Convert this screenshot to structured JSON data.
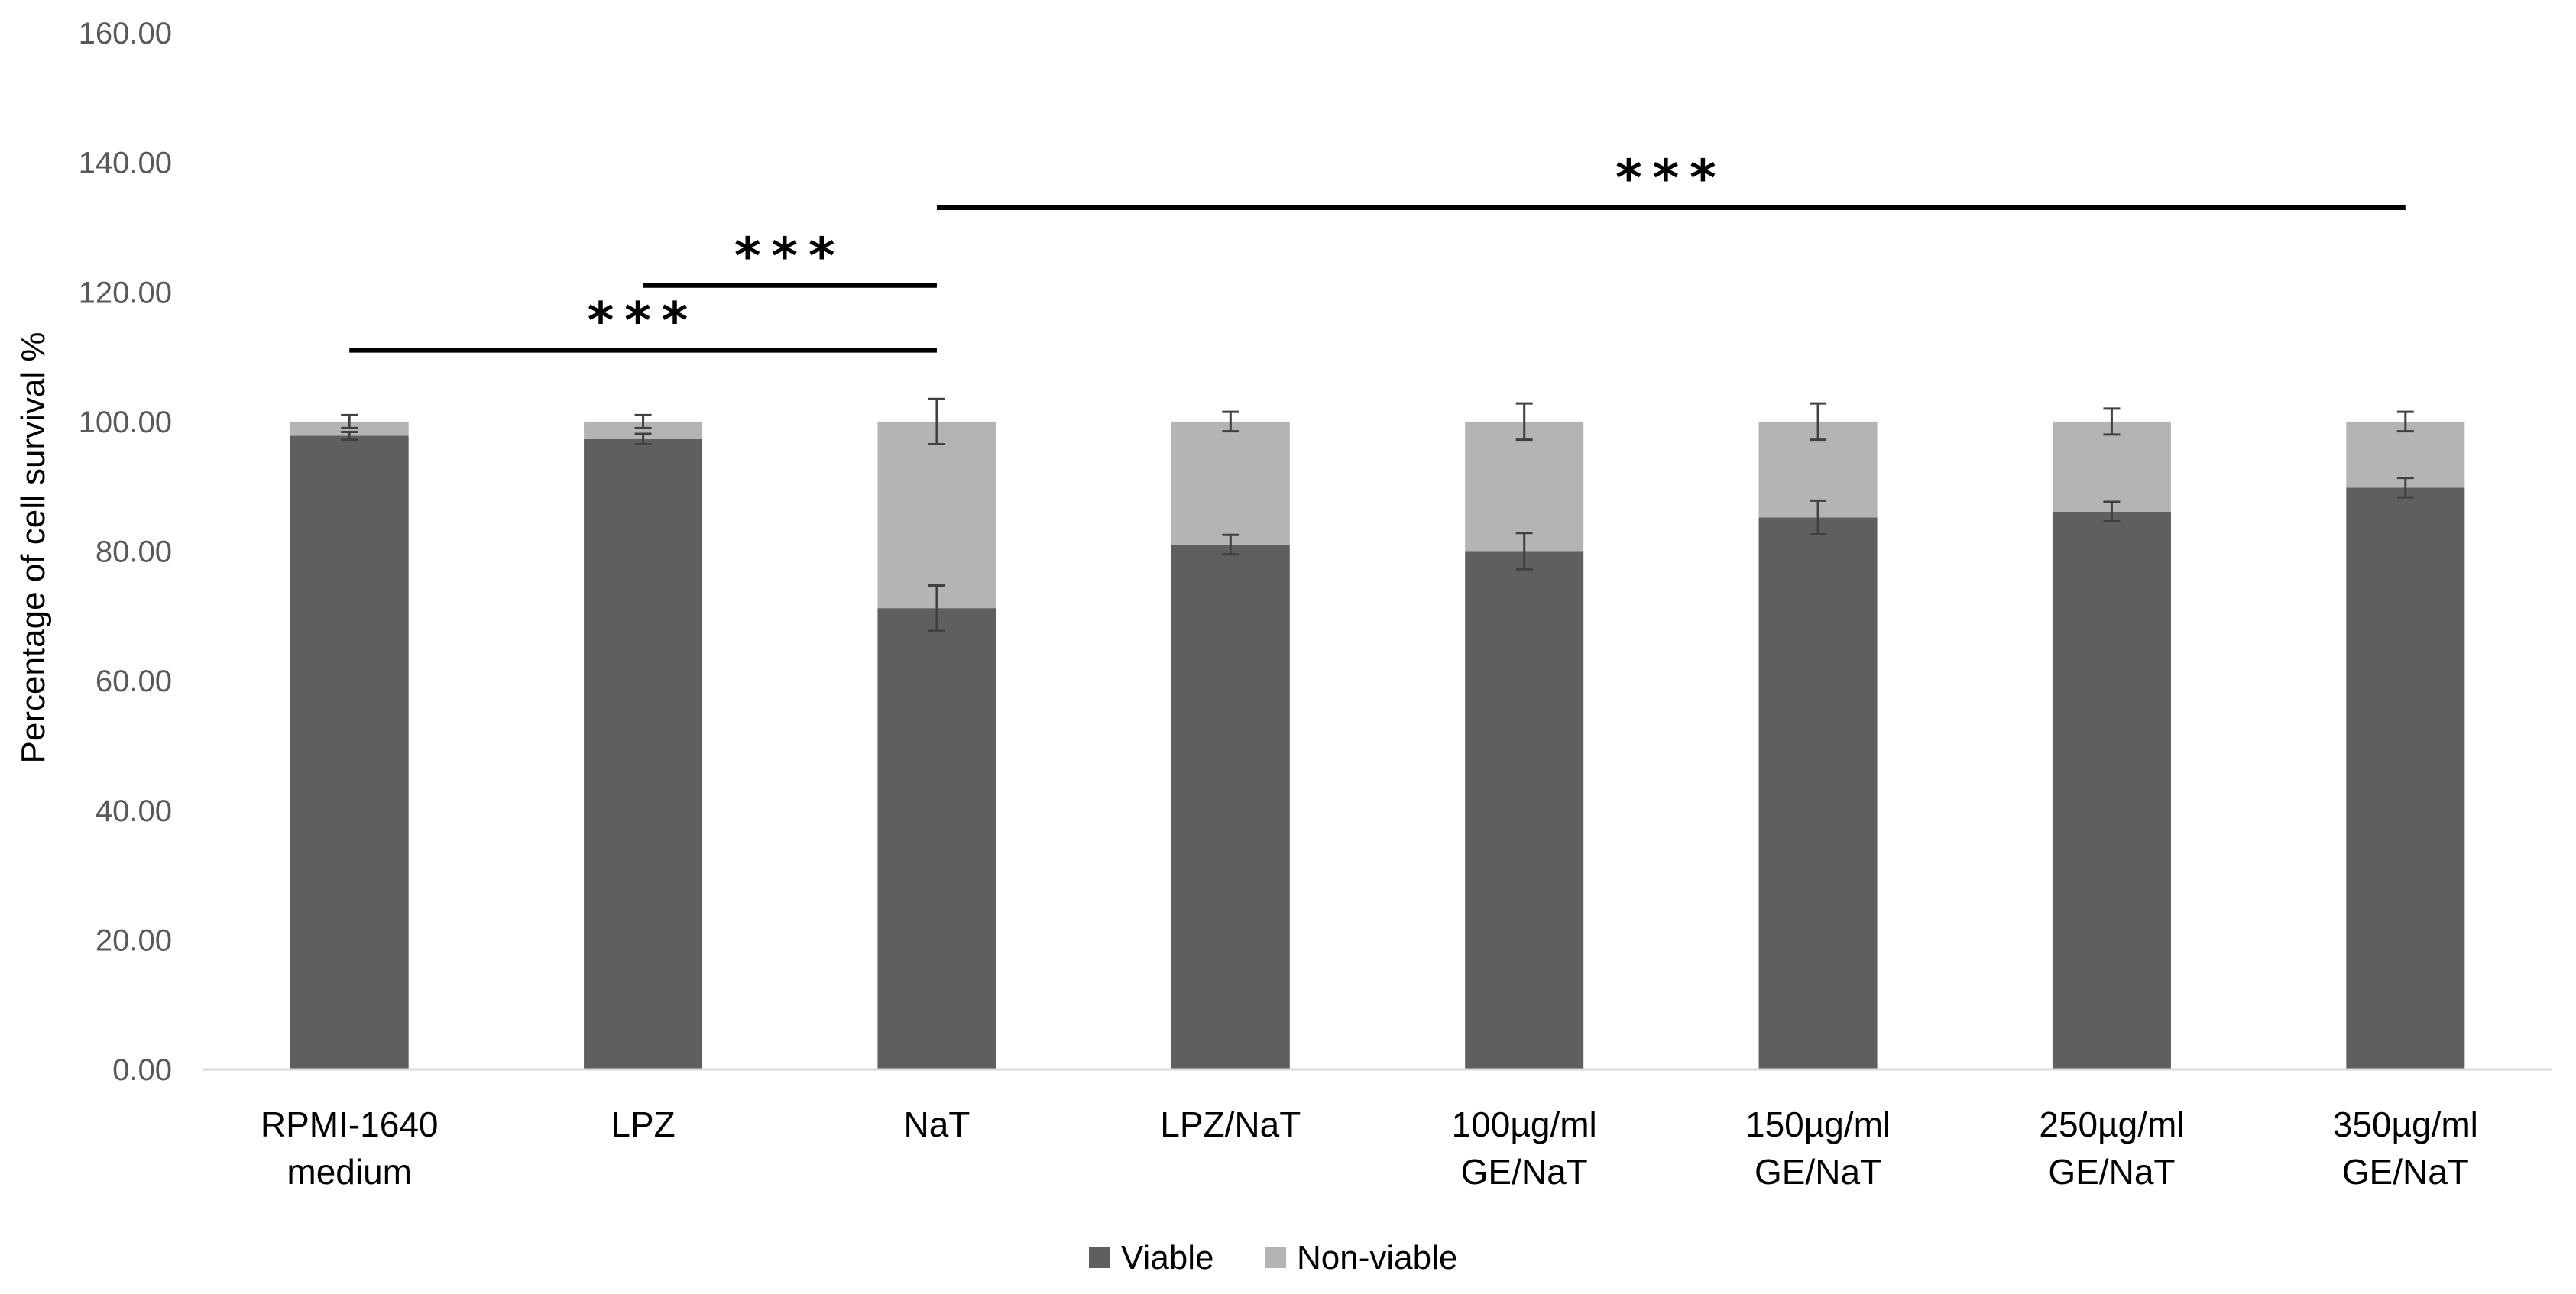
{
  "chart_data": {
    "type": "bar",
    "stacked": true,
    "title": "",
    "xlabel": "",
    "ylabel": "Percentage of cell survival %",
    "ylim": [
      0,
      160
    ],
    "yticks": [
      "0.00",
      "20.00",
      "40.00",
      "60.00",
      "80.00",
      "100.00",
      "120.00",
      "140.00",
      "160.00"
    ],
    "categories": [
      [
        "RPMI-1640",
        "medium"
      ],
      [
        "LPZ"
      ],
      [
        "NaT"
      ],
      [
        "LPZ/NaT"
      ],
      [
        "100µg/ml",
        "GE/NaT"
      ],
      [
        "150µg/ml",
        "GE/NaT"
      ],
      [
        "250µg/ml",
        "GE/NaT"
      ],
      [
        "350µg/ml",
        "GE/NaT"
      ]
    ],
    "series": [
      {
        "name": "Viable",
        "color": "#5f5f5f",
        "values": [
          97.8,
          97.3,
          71.2,
          81.0,
          80.0,
          85.2,
          86.1,
          89.8
        ],
        "errors": [
          0.6,
          0.8,
          3.5,
          1.5,
          2.8,
          2.6,
          1.5,
          1.5
        ]
      },
      {
        "name": "Non-viable",
        "color": "#b4b4b4",
        "values": [
          2.2,
          2.7,
          28.8,
          19.0,
          20.0,
          14.8,
          13.9,
          10.2
        ],
        "errors": [
          1.0,
          1.0,
          3.5,
          1.5,
          2.8,
          2.8,
          2.0,
          1.5
        ]
      }
    ],
    "legend": [
      "Viable",
      "Non-viable"
    ],
    "legend_position": "bottom-center",
    "grid": false,
    "significance": [
      {
        "label": "***",
        "from": 0,
        "to": 2,
        "y": 111
      },
      {
        "label": "***",
        "from": 1,
        "to": 2,
        "y": 121
      },
      {
        "label": "***",
        "from": 2,
        "to": 7,
        "y": 133
      }
    ],
    "colors": {
      "axis": "#d9d9d9",
      "error_bar": "#404040",
      "sig_line": "#000000"
    }
  }
}
